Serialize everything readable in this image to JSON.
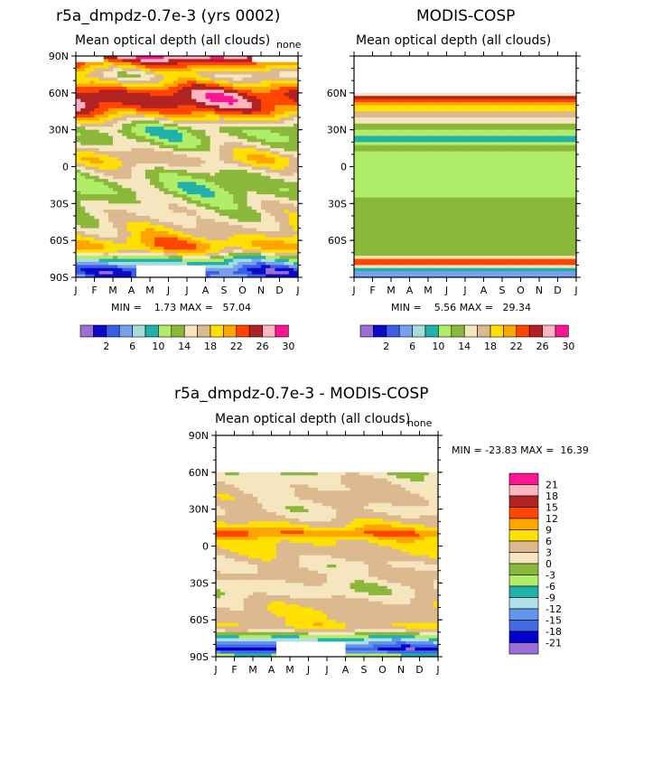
{
  "panels": [
    {
      "id": "model",
      "title": "r5a_dmpdz-0.7e-3 (yrs 0002)",
      "subtitle": "Mean optical depth (all clouds)",
      "corner": "none",
      "min_label": "MIN =",
      "min_value": "1.73",
      "max_label": "MAX =",
      "max_value": "57.04"
    },
    {
      "id": "obs",
      "title": "MODIS-COSP",
      "subtitle": "Mean optical depth (all clouds)",
      "min_label": "MIN =",
      "min_value": "5.56",
      "max_label": "MAX =",
      "max_value": "29.34"
    },
    {
      "id": "diff",
      "title": "r5a_dmpdz-0.7e-3 - MODIS-COSP",
      "subtitle": "Mean optical depth (all clouds)",
      "corner": "none",
      "min_label": "MIN =",
      "min_value": "-23.83",
      "max_label": "MAX =",
      "max_value": "16.39"
    }
  ],
  "chart_data": [
    {
      "type": "heatmap",
      "title": "r5a_dmpdz-0.7e-3 (yrs 0002)",
      "subtitle": "Mean optical depth (all clouds)",
      "x": [
        "J",
        "F",
        "M",
        "A",
        "M",
        "J",
        "J",
        "A",
        "S",
        "O",
        "N",
        "D",
        "J"
      ],
      "y_ticks": [
        "90N",
        "60N",
        "30N",
        "0",
        "30S",
        "60S",
        "90S"
      ],
      "ylim": [
        -90,
        90
      ],
      "min": 1.73,
      "max": 57.04,
      "levels": [
        2,
        4,
        6,
        8,
        10,
        12,
        14,
        16,
        18,
        20,
        22,
        24,
        26,
        28,
        30
      ],
      "level_labels": [
        "2",
        "6",
        "10",
        "14",
        "18",
        "22",
        "26",
        "30"
      ],
      "zonal_profile": [
        [
          -90,
          6
        ],
        [
          -85,
          4
        ],
        [
          -80,
          8
        ],
        [
          -75,
          12
        ],
        [
          -70,
          20
        ],
        [
          -65,
          23
        ],
        [
          -60,
          22
        ],
        [
          -55,
          20
        ],
        [
          -50,
          19
        ],
        [
          -45,
          18
        ],
        [
          -40,
          17
        ],
        [
          -35,
          17
        ],
        [
          -30,
          16
        ],
        [
          -25,
          15
        ],
        [
          -20,
          14
        ],
        [
          -15,
          14
        ],
        [
          -10,
          15
        ],
        [
          -5,
          16
        ],
        [
          0,
          18
        ],
        [
          5,
          20
        ],
        [
          10,
          19
        ],
        [
          15,
          17
        ],
        [
          20,
          15
        ],
        [
          25,
          14
        ],
        [
          30,
          14
        ],
        [
          35,
          17
        ],
        [
          40,
          21
        ],
        [
          45,
          25
        ],
        [
          50,
          27
        ],
        [
          55,
          28
        ],
        [
          60,
          27
        ],
        [
          65,
          24
        ],
        [
          70,
          20
        ],
        [
          75,
          18
        ],
        [
          80,
          22
        ],
        [
          85,
          26
        ],
        [
          90,
          30
        ]
      ]
    },
    {
      "type": "heatmap",
      "title": "MODIS-COSP",
      "subtitle": "Mean optical depth (all clouds)",
      "x": [
        "J",
        "F",
        "M",
        "A",
        "M",
        "J",
        "J",
        "A",
        "S",
        "O",
        "N",
        "D",
        "J"
      ],
      "y_ticks": [
        "60N",
        "30N",
        "0",
        "30S",
        "60S"
      ],
      "ylim": [
        -90,
        90
      ],
      "min": 5.56,
      "max": 29.34,
      "levels": [
        2,
        4,
        6,
        8,
        10,
        12,
        14,
        16,
        18,
        20,
        22,
        24,
        26,
        28,
        30
      ],
      "level_labels": [
        "2",
        "6",
        "10",
        "14",
        "18",
        "22",
        "26",
        "30"
      ],
      "zonal_profile": [
        [
          -90,
          8
        ],
        [
          -88,
          6
        ],
        [
          -86,
          8
        ],
        [
          -84,
          10
        ],
        [
          -82,
          14
        ],
        [
          -80,
          22
        ],
        [
          -78,
          27
        ],
        [
          -76,
          24
        ],
        [
          -74,
          18
        ],
        [
          -72,
          16
        ],
        [
          -70,
          15
        ],
        [
          -50,
          15
        ],
        [
          -45,
          14
        ],
        [
          -30,
          14
        ],
        [
          -25,
          14
        ],
        [
          -15,
          12
        ],
        [
          -5,
          12
        ],
        [
          0,
          13
        ],
        [
          5,
          12
        ],
        [
          10,
          13
        ],
        [
          15,
          15
        ],
        [
          20,
          11
        ],
        [
          25,
          12
        ],
        [
          30,
          14
        ],
        [
          35,
          16
        ],
        [
          40,
          18
        ],
        [
          45,
          20
        ],
        [
          50,
          22
        ],
        [
          55,
          26
        ],
        [
          58,
          28
        ],
        [
          60,
          0
        ]
      ]
    },
    {
      "type": "heatmap",
      "title": "r5a_dmpdz-0.7e-3 - MODIS-COSP",
      "subtitle": "Mean optical depth (all clouds)",
      "x": [
        "J",
        "F",
        "M",
        "A",
        "M",
        "J",
        "J",
        "A",
        "S",
        "O",
        "N",
        "D",
        "J"
      ],
      "y_ticks": [
        "90N",
        "60N",
        "30N",
        "0",
        "30S",
        "60S",
        "90S"
      ],
      "ylim": [
        -90,
        90
      ],
      "min": -23.83,
      "max": 16.39,
      "levels": [
        -21,
        -18,
        -15,
        -12,
        -9,
        -6,
        -3,
        0,
        3,
        6,
        9,
        12,
        15,
        18,
        21
      ],
      "level_labels": [
        "21",
        "18",
        "15",
        "12",
        "9",
        "6",
        "3",
        "0",
        "-3",
        "-6",
        "-9",
        "-12",
        "-15",
        "-18",
        "-21"
      ],
      "zonal_profile": [
        [
          -90,
          0
        ],
        [
          -85,
          -20
        ],
        [
          -80,
          -14
        ],
        [
          -75,
          -8
        ],
        [
          -70,
          2
        ],
        [
          -65,
          7
        ],
        [
          -60,
          5
        ],
        [
          -55,
          6
        ],
        [
          -50,
          5
        ],
        [
          -45,
          4
        ],
        [
          -40,
          2
        ],
        [
          -35,
          1
        ],
        [
          -30,
          2
        ],
        [
          -25,
          4
        ],
        [
          -20,
          3
        ],
        [
          -15,
          2
        ],
        [
          -10,
          4
        ],
        [
          -5,
          5
        ],
        [
          0,
          6
        ],
        [
          5,
          7
        ],
        [
          10,
          13
        ],
        [
          15,
          8
        ],
        [
          20,
          5
        ],
        [
          25,
          3
        ],
        [
          30,
          2
        ],
        [
          35,
          3
        ],
        [
          40,
          4
        ],
        [
          45,
          3
        ],
        [
          50,
          3
        ],
        [
          55,
          2
        ],
        [
          58,
          1
        ],
        [
          60,
          0
        ]
      ]
    }
  ],
  "months": [
    "J",
    "F",
    "M",
    "A",
    "M",
    "J",
    "J",
    "A",
    "S",
    "O",
    "N",
    "D",
    "J"
  ],
  "lat_labels": [
    "90N",
    "60N",
    "30N",
    "0",
    "30S",
    "60S",
    "90S"
  ],
  "colors": {
    "seq": [
      "#9b6fd6",
      "#0a0ac8",
      "#3a5ee8",
      "#78a0ef",
      "#a6dcdc",
      "#20b2aa",
      "#b0ed68",
      "#8bb83a",
      "#f5e6c0",
      "#dcb98e",
      "#ffe000",
      "#ffa500",
      "#ff4500",
      "#b22222",
      "#ffb6c1",
      "#ff1493"
    ],
    "div": [
      "#9b6fd6",
      "#0000cd",
      "#4169e1",
      "#6495ed",
      "#b0e0e6",
      "#20b2aa",
      "#b0ed68",
      "#8bb83a",
      "#f5e6c0",
      "#dcb98e",
      "#ffe000",
      "#ffa500",
      "#ff4500",
      "#b22222",
      "#ffb6c1",
      "#ff1493"
    ]
  }
}
